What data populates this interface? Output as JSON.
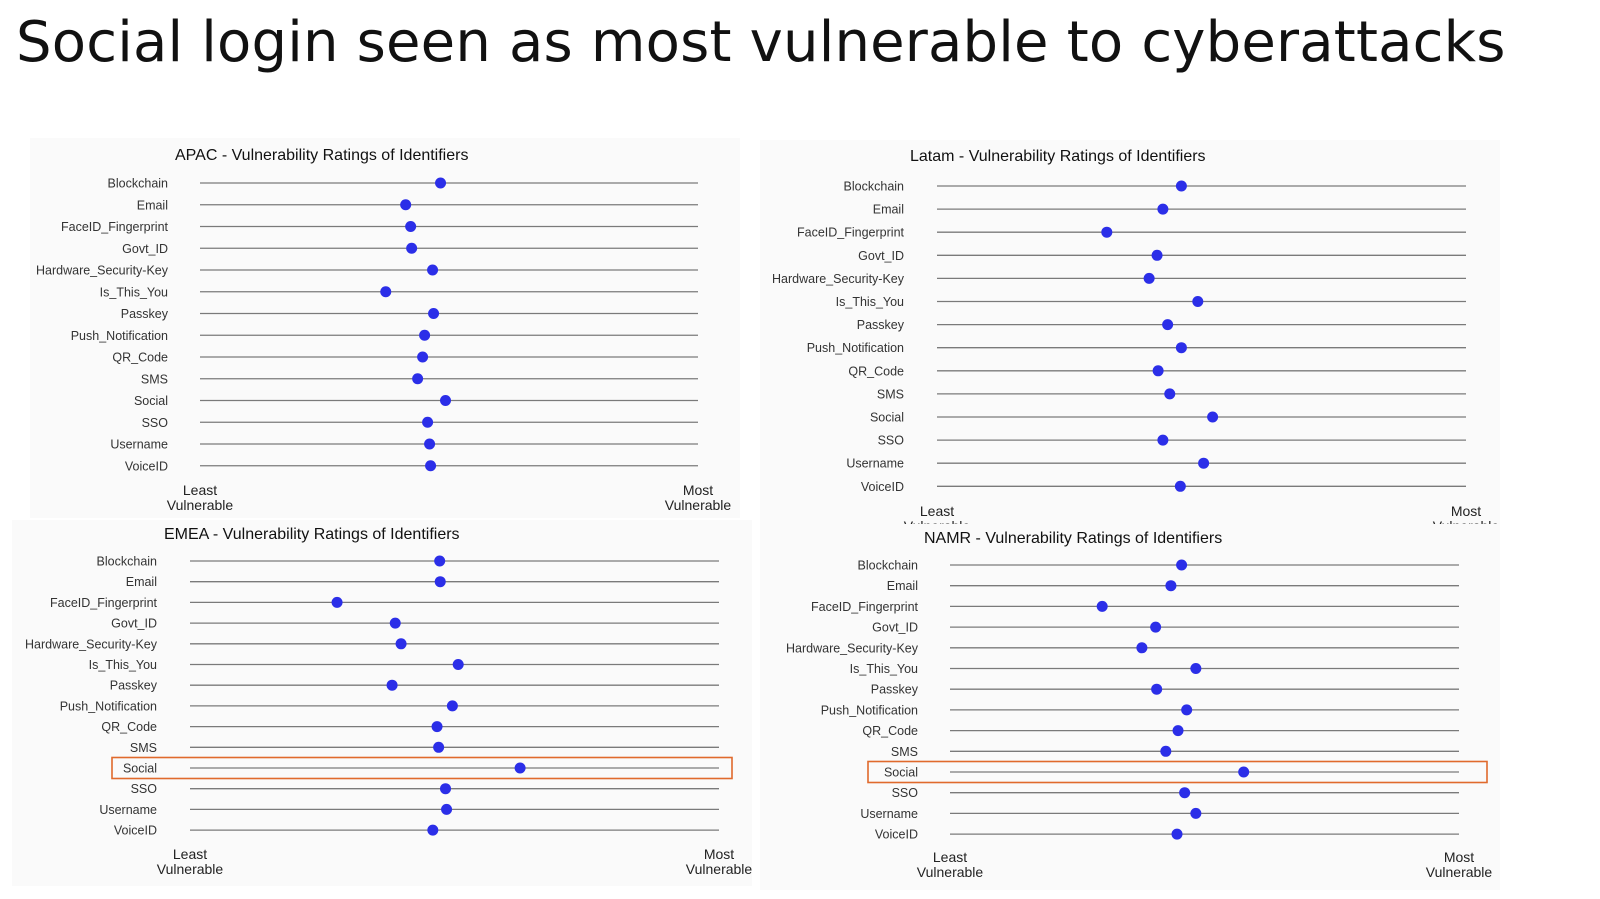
{
  "slide": {
    "title": "Social login seen as most vulnerable to cyberattacks"
  },
  "colors": {
    "dot": "#2b2ee8",
    "line": "#7a7a7a",
    "highlight": "#e06a2c"
  },
  "chart_data": [
    {
      "id": "apac",
      "type": "scatter",
      "title": "APAC - Vulnerability Ratings of Identifiers",
      "xlabel_left": "Least Vulnerable",
      "xlabel_right": "Most Vulnerable",
      "xlim": [
        0,
        100
      ],
      "categories": [
        "Blockchain",
        "Email",
        "FaceID_Fingerprint",
        "Govt_ID",
        "Hardware_Security-Key",
        "Is_This_You",
        "Passkey",
        "Push_Notification",
        "QR_Code",
        "SMS",
        "Social",
        "SSO",
        "Username",
        "VoiceID"
      ],
      "values": [
        48.3,
        41.3,
        42.3,
        42.5,
        46.7,
        37.3,
        46.9,
        45.1,
        44.7,
        43.7,
        49.3,
        45.7,
        46.1,
        46.3
      ],
      "highlight": null
    },
    {
      "id": "latam",
      "type": "scatter",
      "title": "Latam - Vulnerability Ratings of Identifiers",
      "xlabel_left": "Least Vulnerable",
      "xlabel_right": "Most Vulnerable",
      "xlim": [
        0,
        100
      ],
      "categories": [
        "Blockchain",
        "Email",
        "FaceID_Fingerprint",
        "Govt_ID",
        "Hardware_Security-Key",
        "Is_This_You",
        "Passkey",
        "Push_Notification",
        "QR_Code",
        "SMS",
        "Social",
        "SSO",
        "Username",
        "VoiceID"
      ],
      "values": [
        46.2,
        42.7,
        32.1,
        41.6,
        40.1,
        49.3,
        43.6,
        46.2,
        41.8,
        44.0,
        52.1,
        42.7,
        50.4,
        46.0
      ],
      "highlight": null
    },
    {
      "id": "emea",
      "type": "scatter",
      "title": "EMEA - Vulnerability Ratings of Identifiers",
      "xlabel_left": "Least Vulnerable",
      "xlabel_right": "Most Vulnerable",
      "xlim": [
        0,
        100
      ],
      "categories": [
        "Blockchain",
        "Email",
        "FaceID_Fingerprint",
        "Govt_ID",
        "Hardware_Security-Key",
        "Is_This_You",
        "Passkey",
        "Push_Notification",
        "QR_Code",
        "SMS",
        "Social",
        "SSO",
        "Username",
        "VoiceID"
      ],
      "values": [
        47.2,
        47.3,
        27.8,
        38.8,
        39.9,
        50.7,
        38.2,
        49.6,
        46.7,
        47.0,
        62.4,
        48.3,
        48.5,
        45.9
      ],
      "highlight": "Social"
    },
    {
      "id": "namr",
      "type": "scatter",
      "title": "NAMR - Vulnerability Ratings of Identifiers",
      "xlabel_left": "Least Vulnerable",
      "xlabel_right": "Most Vulnerable",
      "xlim": [
        0,
        100
      ],
      "categories": [
        "Blockchain",
        "Email",
        "FaceID_Fingerprint",
        "Govt_ID",
        "Hardware_Security-Key",
        "Is_This_You",
        "Passkey",
        "Push_Notification",
        "QR_Code",
        "SMS",
        "Social",
        "SSO",
        "Username",
        "VoiceID"
      ],
      "values": [
        45.5,
        43.4,
        29.9,
        40.4,
        37.7,
        48.3,
        40.6,
        46.5,
        44.8,
        42.4,
        57.7,
        46.1,
        48.3,
        44.6
      ],
      "highlight": "Social"
    }
  ]
}
